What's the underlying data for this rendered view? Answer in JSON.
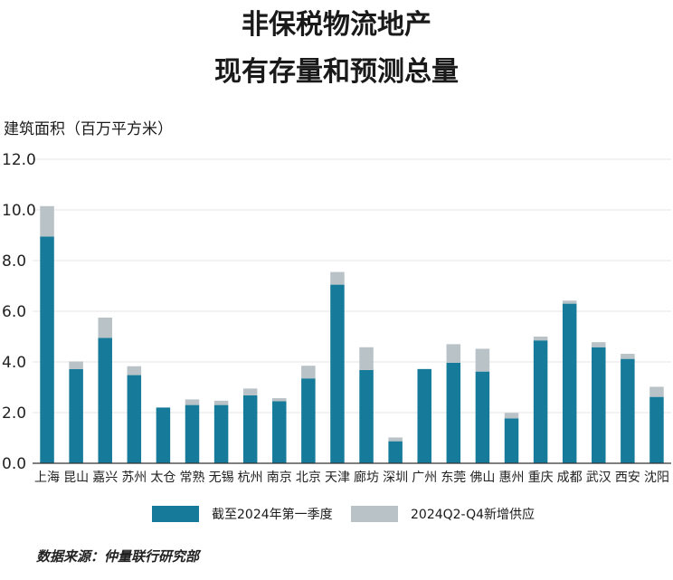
{
  "title_line1": "非保税物流地产",
  "title_line2": "现有存量和预测总量",
  "source": "数据来源：仲量联行研究部",
  "colors": {
    "existing": "#167b9a",
    "supply": "#b9c2c6",
    "grid": "#e6e6e6",
    "axis": "#333333"
  },
  "chart_data": {
    "type": "bar",
    "stacked": true,
    "ylabel": "建筑面积（百万平方米）",
    "ylim": [
      0,
      12
    ],
    "yticks": [
      "0.0",
      "2.0",
      "4.0",
      "6.0",
      "8.0",
      "10.0",
      "12.0"
    ],
    "grid": true,
    "legend_position": "bottom",
    "categories": [
      "上海",
      "昆山",
      "嘉兴",
      "苏州",
      "太仓",
      "常熟",
      "无锡",
      "杭州",
      "南京",
      "北京",
      "天津",
      "廊坊",
      "深圳",
      "广州",
      "东莞",
      "佛山",
      "惠州",
      "重庆",
      "成都",
      "武汉",
      "西安",
      "沈阳"
    ],
    "series": [
      {
        "name": "截至2024年第一季度",
        "values": [
          8.95,
          3.72,
          4.95,
          3.48,
          2.2,
          2.3,
          2.3,
          2.68,
          2.45,
          3.35,
          7.05,
          3.68,
          0.87,
          3.72,
          3.97,
          3.62,
          1.77,
          4.85,
          6.3,
          4.58,
          4.12,
          2.62
        ]
      },
      {
        "name": "2024Q2-Q4新增供应",
        "values": [
          1.2,
          0.3,
          0.8,
          0.35,
          0.0,
          0.22,
          0.17,
          0.27,
          0.12,
          0.5,
          0.5,
          0.9,
          0.15,
          0.0,
          0.73,
          0.9,
          0.22,
          0.15,
          0.12,
          0.2,
          0.2,
          0.4
        ]
      }
    ]
  }
}
